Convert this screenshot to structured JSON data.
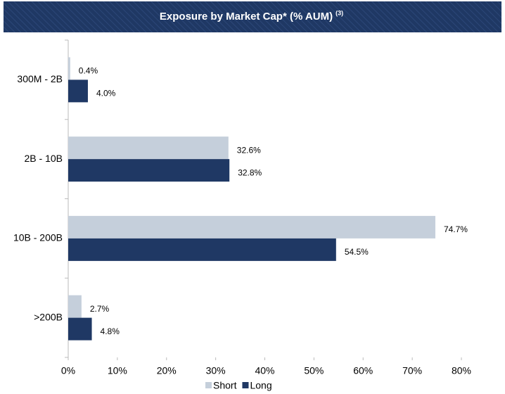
{
  "chart_data": {
    "type": "bar",
    "orientation": "horizontal",
    "title": "Exposure by Market Cap* (% AUM)",
    "title_note": "(3)",
    "categories": [
      "300M - 2B",
      "2B - 10B",
      "10B - 200B",
      ">200B"
    ],
    "series": [
      {
        "name": "Short",
        "color": "#c5cfdb",
        "values": [
          0.4,
          32.6,
          74.7,
          2.7
        ],
        "value_labels": [
          "0.4%",
          "32.6%",
          "74.7%",
          "2.7%"
        ]
      },
      {
        "name": "Long",
        "color": "#1f3864",
        "values": [
          4.0,
          32.8,
          54.5,
          4.8
        ],
        "value_labels": [
          "4.0%",
          "32.8%",
          "54.5%",
          "4.8%"
        ]
      }
    ],
    "xlim": [
      0,
      80
    ],
    "xticks": [
      {
        "value": 0,
        "label": "0%"
      },
      {
        "value": 10,
        "label": "10%"
      },
      {
        "value": 20,
        "label": "20%"
      },
      {
        "value": 30,
        "label": "30%"
      },
      {
        "value": 40,
        "label": "40%"
      },
      {
        "value": 50,
        "label": "50%"
      },
      {
        "value": 60,
        "label": "60%"
      },
      {
        "value": 70,
        "label": "70%"
      },
      {
        "value": 80,
        "label": "80%"
      }
    ],
    "legend": "bottom",
    "grid": false
  }
}
